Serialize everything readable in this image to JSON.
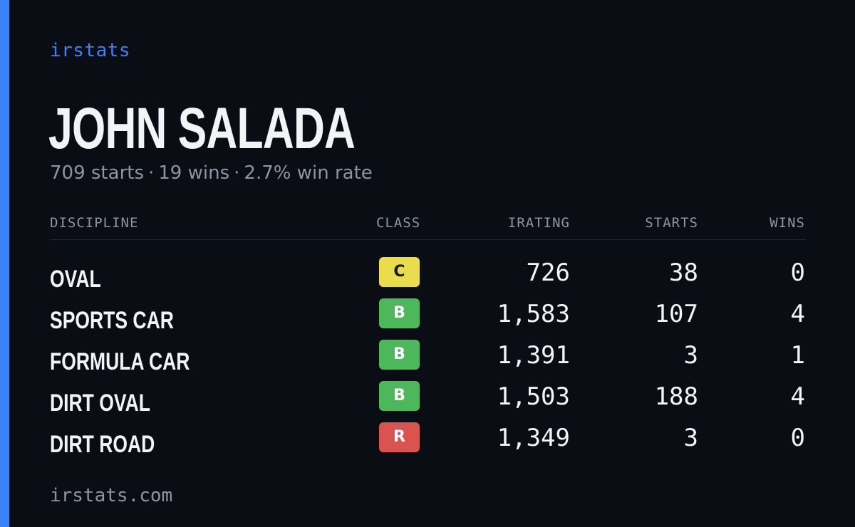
{
  "brand": "irstats",
  "player": {
    "name": "JOHN SALADA",
    "starts_text": "709 starts",
    "wins_text": "19 wins",
    "win_rate_text": "2.7% win rate",
    "separator": "·"
  },
  "table": {
    "headers": {
      "discipline": "DISCIPLINE",
      "class": "CLASS",
      "irating": "IRATING",
      "starts": "STARTS",
      "wins": "WINS"
    },
    "rows": [
      {
        "discipline": "OVAL",
        "class": "C",
        "class_color": "#e9dd4b",
        "class_text_color": "#1a1a1a",
        "irating": "726",
        "starts": "38",
        "wins": "0"
      },
      {
        "discipline": "SPORTS CAR",
        "class": "B",
        "class_color": "#4cb85a",
        "class_text_color": "#ffffff",
        "irating": "1,583",
        "starts": "107",
        "wins": "4"
      },
      {
        "discipline": "FORMULA CAR",
        "class": "B",
        "class_color": "#4cb85a",
        "class_text_color": "#ffffff",
        "irating": "1,391",
        "starts": "3",
        "wins": "1"
      },
      {
        "discipline": "DIRT OVAL",
        "class": "B",
        "class_color": "#4cb85a",
        "class_text_color": "#ffffff",
        "irating": "1,503",
        "starts": "188",
        "wins": "4"
      },
      {
        "discipline": "DIRT ROAD",
        "class": "R",
        "class_color": "#d9534f",
        "class_text_color": "#ffffff",
        "irating": "1,349",
        "starts": "3",
        "wins": "0"
      }
    ]
  },
  "footer": "irstats.com",
  "colors": {
    "background": "#0a0d14",
    "accent": "#3b82f6",
    "text": "#f3f4f6",
    "muted": "#8d95a5"
  }
}
